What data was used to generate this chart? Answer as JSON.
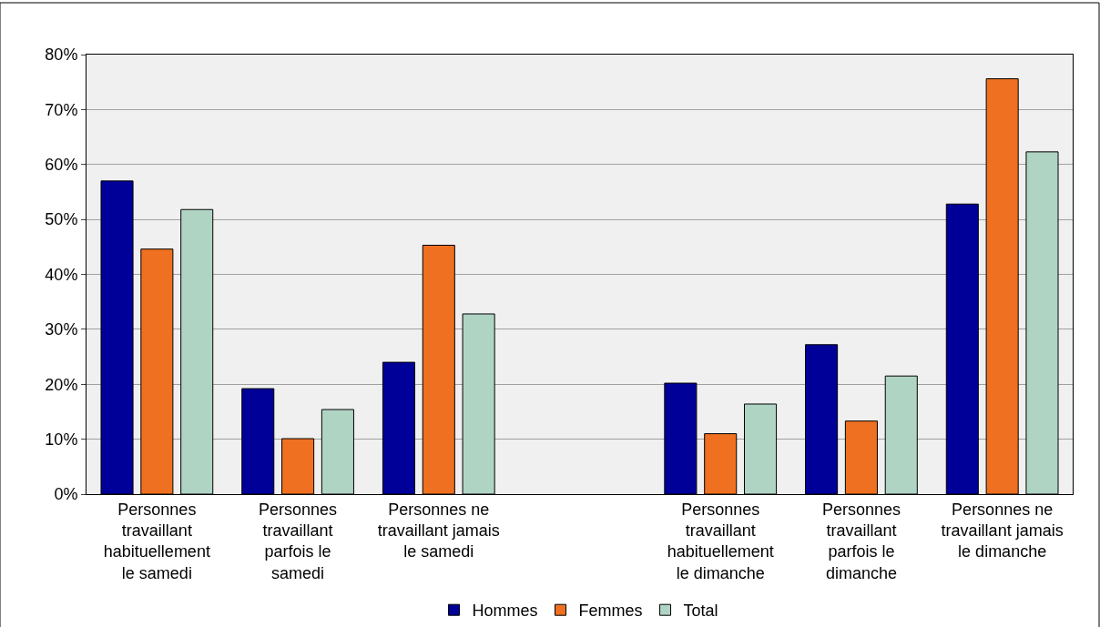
{
  "chart_data": {
    "type": "bar",
    "categories": [
      "Personnes\ntravaillant\nhabituellement\nle samedi",
      "Personnes\ntravaillant\nparfois le\nsamedi",
      "Personnes ne\ntravaillant jamais\nle samedi",
      null,
      "Personnes\ntravaillant\nhabituellement\nle dimanche",
      "Personnes\ntravaillant\nparfois le\ndimanche",
      "Personnes ne\ntravaillant jamais\nle dimanche"
    ],
    "series": [
      {
        "name": "Hommes",
        "color": "#000099",
        "values": [
          57.0,
          19.2,
          24.0,
          null,
          20.2,
          27.2,
          52.8
        ]
      },
      {
        "name": "Femmes",
        "color": "#ee7020",
        "values": [
          44.6,
          10.1,
          45.3,
          null,
          11.0,
          13.3,
          75.6
        ]
      },
      {
        "name": "Total",
        "color": "#b0d4c4",
        "values": [
          51.8,
          15.4,
          32.8,
          null,
          16.4,
          21.5,
          62.3
        ]
      }
    ],
    "ylim": [
      0,
      80
    ],
    "yticks": [
      {
        "value": 0,
        "label": "0%"
      },
      {
        "value": 10,
        "label": "10%"
      },
      {
        "value": 20,
        "label": "20%"
      },
      {
        "value": 30,
        "label": "30%"
      },
      {
        "value": 40,
        "label": "40%"
      },
      {
        "value": 50,
        "label": "50%"
      },
      {
        "value": 60,
        "label": "60%"
      },
      {
        "value": 70,
        "label": "70%"
      },
      {
        "value": 80,
        "label": "80%"
      }
    ],
    "grid": "y",
    "legend": "bottom"
  }
}
